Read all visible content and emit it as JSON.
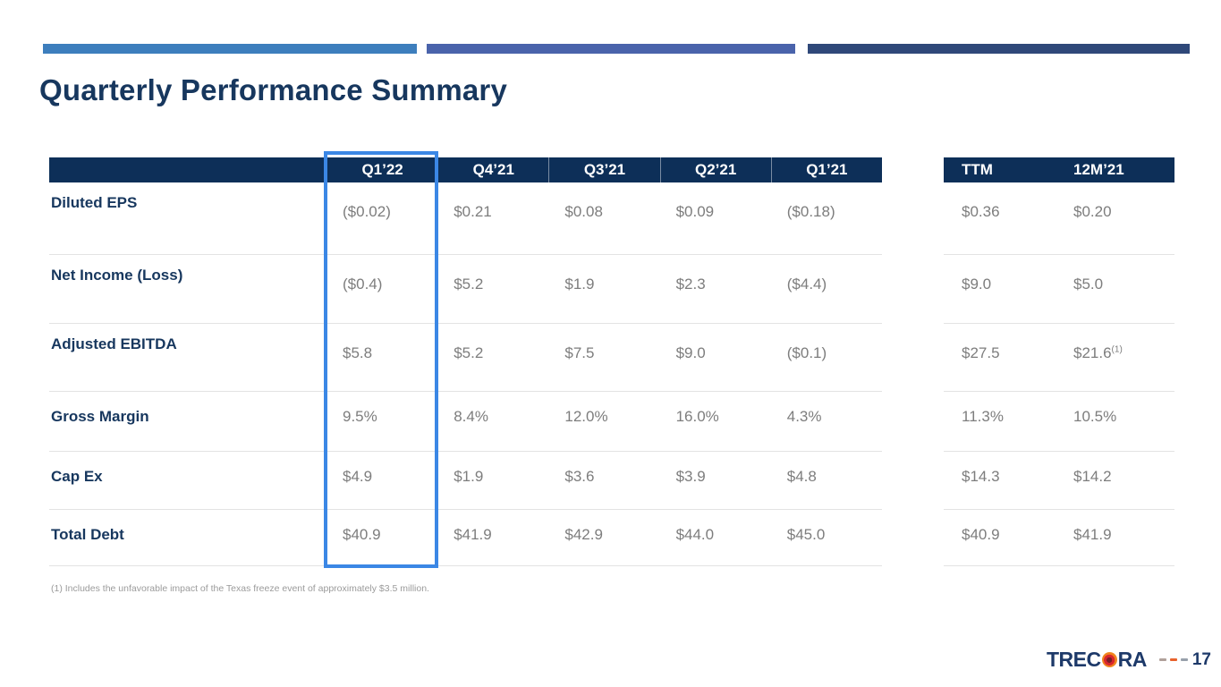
{
  "slide": {
    "title": "Quarterly Performance Summary",
    "footnote": "(1) Includes the unfavorable impact of the Texas freeze event of approximately $3.5 million.",
    "page_number": "17",
    "accent_colors": {
      "bar1": "#3d7ebd",
      "bar2": "#4a63ab",
      "bar3": "#2f4879",
      "header_navy": "#0d2f58",
      "highlight_blue": "#3b87e5"
    }
  },
  "logo": {
    "text_left": "TREC",
    "text_right": "RA",
    "flame_icon": "flame-o-icon"
  },
  "table": {
    "highlight_column": "Q1’22",
    "quarter_headers": [
      "Q1’22",
      "Q4’21",
      "Q3’21",
      "Q2’21",
      "Q1’21"
    ],
    "summary_headers": [
      "TTM",
      "12M’21"
    ],
    "rows": [
      {
        "label": "Diluted EPS",
        "values": [
          "($0.02)",
          "$0.21",
          "$0.08",
          "$0.09",
          "($0.18)"
        ],
        "summary": [
          "$0.36",
          "$0.20"
        ]
      },
      {
        "label": "Net Income (Loss)",
        "values": [
          "($0.4)",
          "$5.2",
          "$1.9",
          "$2.3",
          "($4.4)"
        ],
        "summary": [
          "$9.0",
          "$5.0"
        ]
      },
      {
        "label": "Adjusted EBITDA",
        "values": [
          "$5.8",
          "$5.2",
          "$7.5",
          "$9.0",
          "($0.1)"
        ],
        "summary": [
          "$27.5",
          "$21.6"
        ],
        "note_ref": "(1)"
      },
      {
        "label": "Gross Margin",
        "values": [
          "9.5%",
          "8.4%",
          "12.0%",
          "16.0%",
          "4.3%"
        ],
        "summary": [
          "11.3%",
          "10.5%"
        ]
      },
      {
        "label": "Cap Ex",
        "values": [
          "$4.9",
          "$1.9",
          "$3.6",
          "$3.9",
          "$4.8"
        ],
        "summary": [
          "$14.3",
          "$14.2"
        ]
      },
      {
        "label": "Total Debt",
        "values": [
          "$40.9",
          "$41.9",
          "$42.9",
          "$44.0",
          "$45.0"
        ],
        "summary": [
          "$40.9",
          "$41.9"
        ]
      }
    ]
  }
}
